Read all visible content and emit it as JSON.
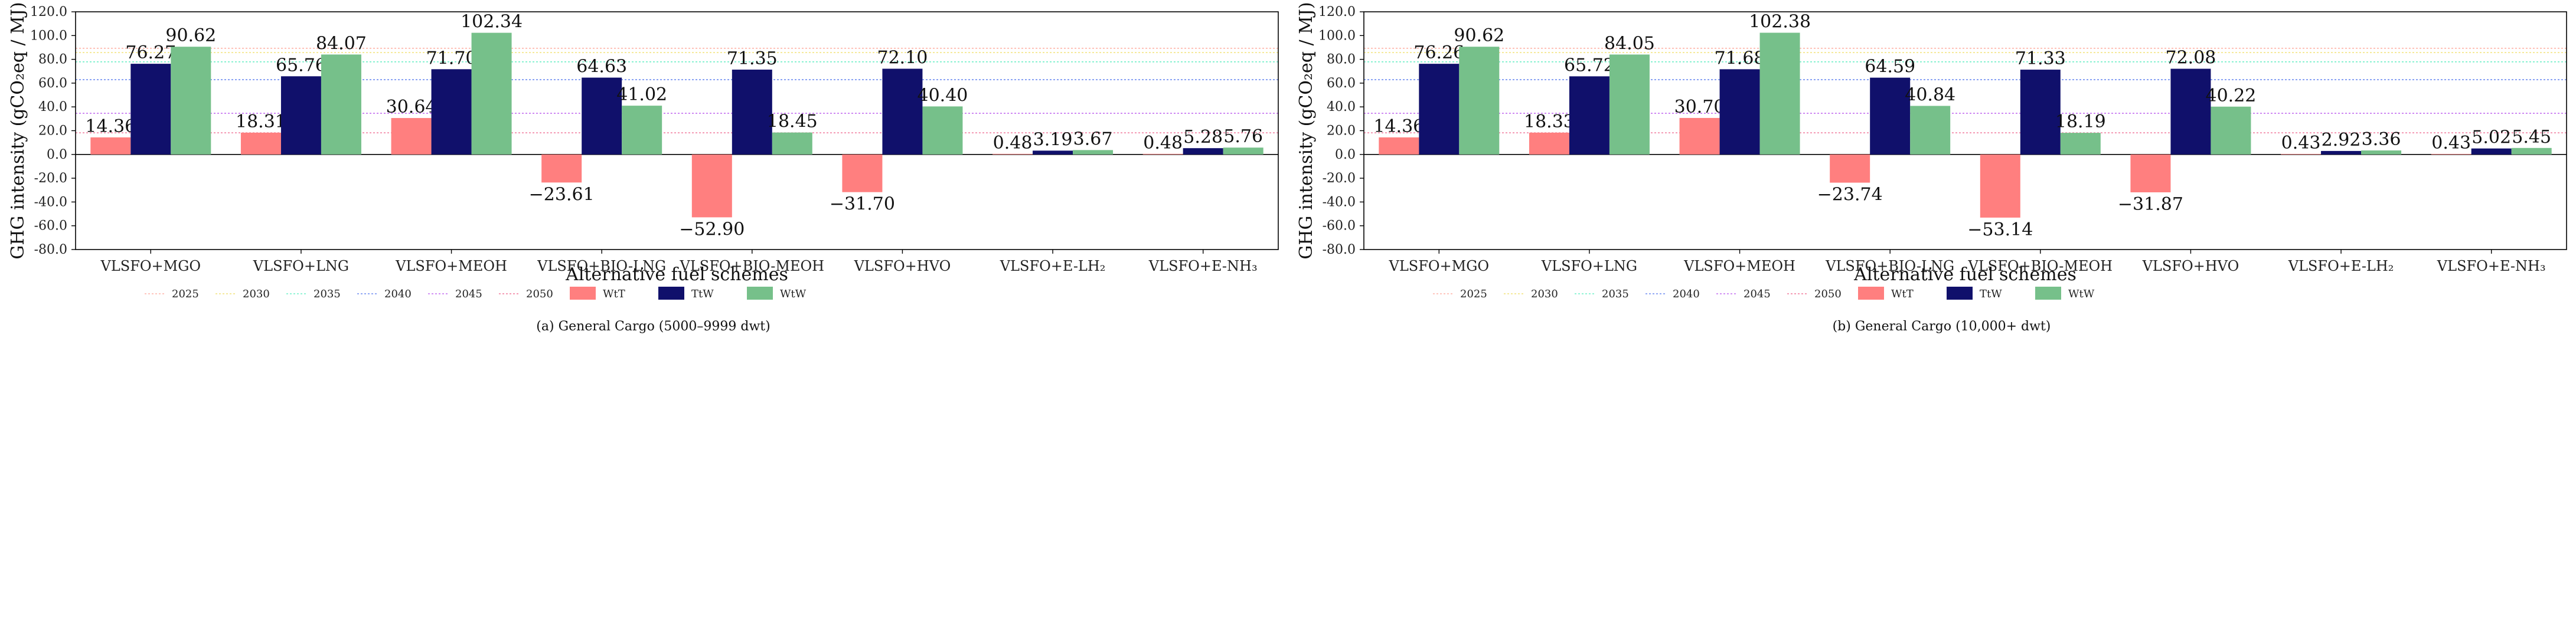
{
  "figure": {
    "colors": {
      "WtT": "#ff7f7f",
      "TtW": "#10106b",
      "WtW": "#76c08a",
      "2025": "#ffb3a8",
      "2030": "#f2e27a",
      "2035": "#6ff0c8",
      "2040": "#6f8cf0",
      "2045": "#c46ff0",
      "2050": "#f07a9c"
    }
  },
  "chart_data": [
    {
      "type": "bar",
      "caption": "(a) General Cargo (5000–9999 dwt)",
      "xlabel": "Alternative fuel schemes",
      "ylabel": "GHG intensity (gCO₂eq / MJ)",
      "ylim": [
        -80,
        120
      ],
      "yticks": [
        "120.0",
        "100.0",
        "80.0",
        "60.0",
        "40.0",
        "20.0",
        "0.0",
        "-20.0",
        "-40.0",
        "-60.0",
        "-80.0"
      ],
      "categories": [
        "VLSFO+MGO",
        "VLSFO+LNG",
        "VLSFO+MEOH",
        "VLSFO+BIO-LNG",
        "VLSFO+BIO-MEOH",
        "VLSFO+HVO",
        "VLSFO+E-LH₂",
        "VLSFO+E-NH₃"
      ],
      "series": [
        {
          "name": "WtT",
          "values": [
            14.36,
            18.31,
            30.64,
            -23.61,
            -52.9,
            -31.7,
            0.48,
            0.48
          ],
          "labels": [
            "14.36",
            "18.31",
            "30.64",
            "−23.61",
            "−52.90",
            "−31.70",
            "0.48",
            "0.48"
          ]
        },
        {
          "name": "TtW",
          "values": [
            76.27,
            65.76,
            71.7,
            64.63,
            71.35,
            72.1,
            3.19,
            5.28
          ],
          "labels": [
            "76.27",
            "65.76",
            "71.70",
            "64.63",
            "71.35",
            "72.10",
            "3.19",
            "5.28"
          ]
        },
        {
          "name": "WtW",
          "values": [
            90.62,
            84.07,
            102.34,
            41.02,
            18.45,
            40.4,
            3.67,
            5.76
          ],
          "labels": [
            "90.62",
            "84.07",
            "102.34",
            "41.02",
            "18.45",
            "40.40",
            "3.67",
            "5.76"
          ]
        }
      ],
      "reference_lines": [
        {
          "name": "2025",
          "value": 89.3
        },
        {
          "name": "2030",
          "value": 85.7
        },
        {
          "name": "2035",
          "value": 77.9
        },
        {
          "name": "2040",
          "value": 62.9
        },
        {
          "name": "2045",
          "value": 34.6
        },
        {
          "name": "2050",
          "value": 18.2
        }
      ],
      "legend": [
        "2025",
        "2030",
        "2035",
        "2040",
        "2045",
        "2050",
        "WtT",
        "TtW",
        "WtW"
      ],
      "legend_position": "bottom"
    },
    {
      "type": "bar",
      "caption": "(b) General Cargo (10,000+ dwt)",
      "xlabel": "Alternative fuel schemes",
      "ylabel": "GHG intensity (gCO₂eq / MJ)",
      "ylim": [
        -80,
        120
      ],
      "yticks": [
        "120.0",
        "100.0",
        "80.0",
        "60.0",
        "40.0",
        "20.0",
        "0.0",
        "-20.0",
        "-40.0",
        "-60.0",
        "-80.0"
      ],
      "categories": [
        "VLSFO+MGO",
        "VLSFO+LNG",
        "VLSFO+MEOH",
        "VLSFO+BIO-LNG",
        "VLSFO+BIO-MEOH",
        "VLSFO+HVO",
        "VLSFO+E-LH₂",
        "VLSFO+E-NH₃"
      ],
      "series": [
        {
          "name": "WtT",
          "values": [
            14.36,
            18.33,
            30.7,
            -23.74,
            -53.14,
            -31.87,
            0.43,
            0.43
          ],
          "labels": [
            "14.36",
            "18.33",
            "30.70",
            "−23.74",
            "−53.14",
            "−31.87",
            "0.43",
            "0.43"
          ]
        },
        {
          "name": "TtW",
          "values": [
            76.26,
            65.72,
            71.68,
            64.59,
            71.33,
            72.08,
            2.92,
            5.02
          ],
          "labels": [
            "76.26",
            "65.72",
            "71.68",
            "64.59",
            "71.33",
            "72.08",
            "2.92",
            "5.02"
          ]
        },
        {
          "name": "WtW",
          "values": [
            90.62,
            84.05,
            102.38,
            40.84,
            18.19,
            40.22,
            3.36,
            5.45
          ],
          "labels": [
            "90.62",
            "84.05",
            "102.38",
            "40.84",
            "18.19",
            "40.22",
            "3.36",
            "5.45"
          ]
        }
      ],
      "reference_lines": [
        {
          "name": "2025",
          "value": 89.3
        },
        {
          "name": "2030",
          "value": 85.7
        },
        {
          "name": "2035",
          "value": 77.9
        },
        {
          "name": "2040",
          "value": 62.9
        },
        {
          "name": "2045",
          "value": 34.6
        },
        {
          "name": "2050",
          "value": 18.2
        }
      ],
      "legend": [
        "2025",
        "2030",
        "2035",
        "2040",
        "2045",
        "2050",
        "WtT",
        "TtW",
        "WtW"
      ],
      "legend_position": "bottom"
    }
  ]
}
